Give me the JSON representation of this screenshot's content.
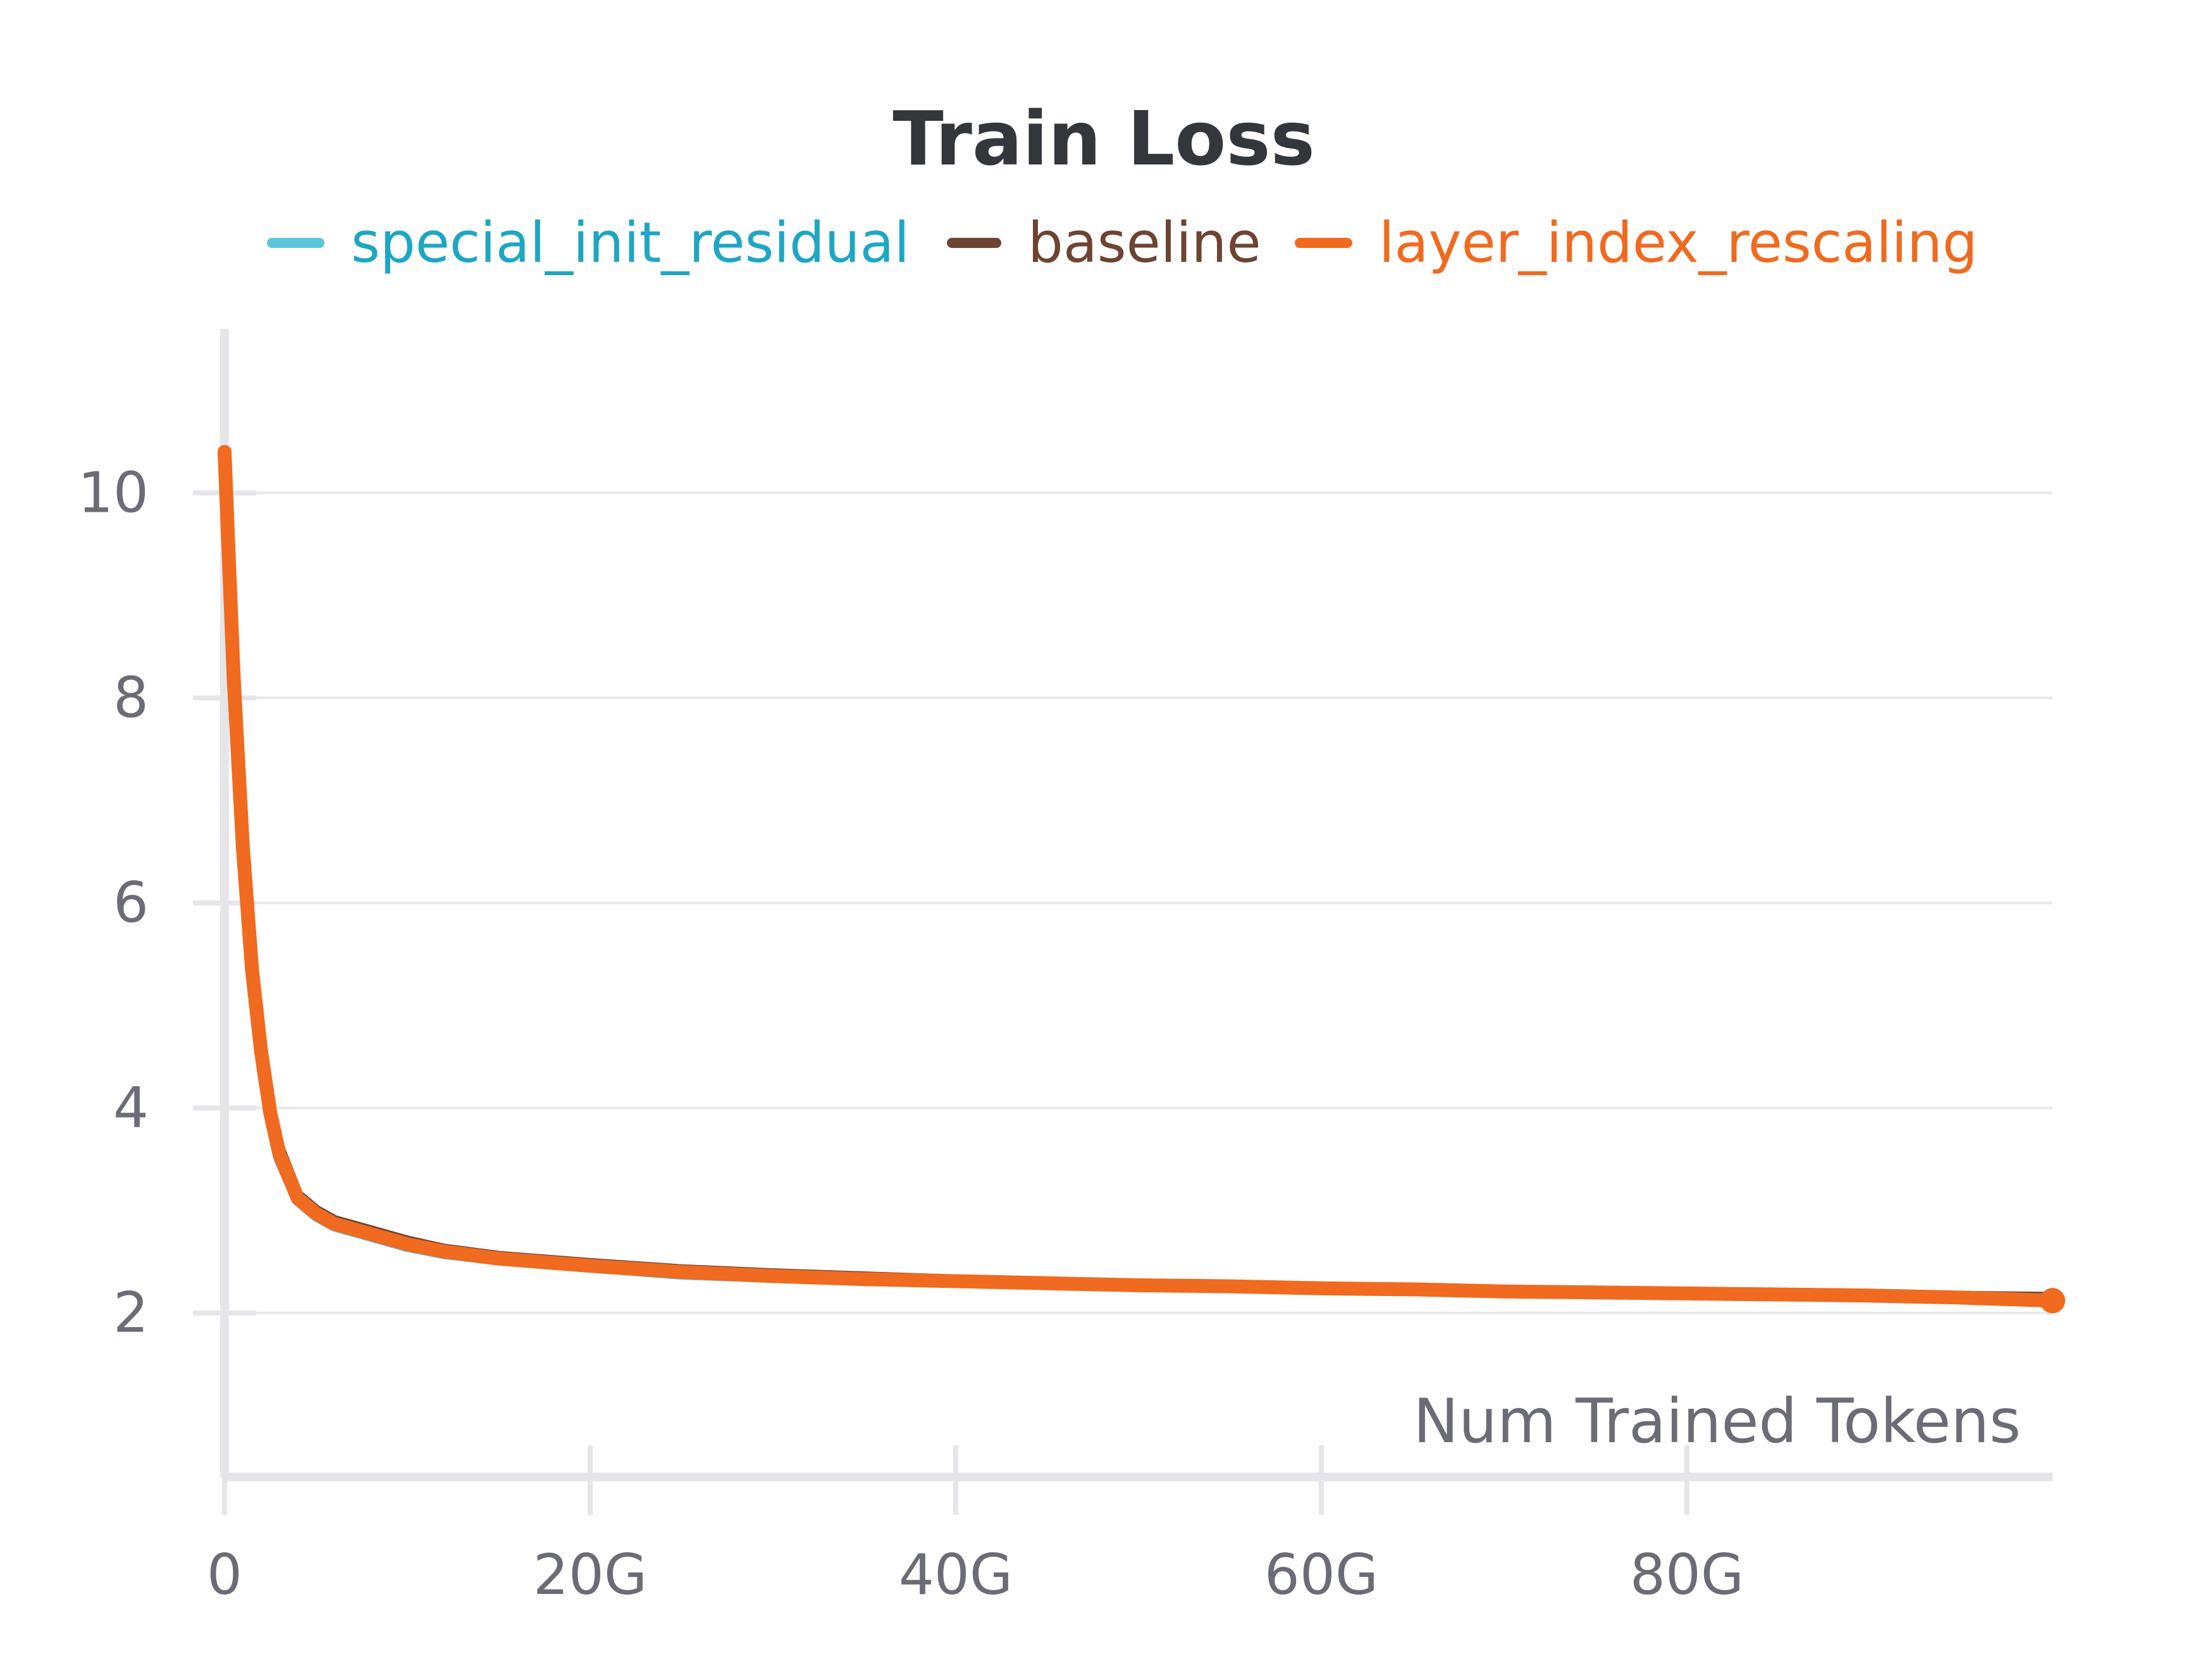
{
  "chart_data": {
    "type": "line",
    "title": "Train Loss",
    "xlabel": "Num Trained Tokens",
    "ylabel": "",
    "xlim": [
      0,
      100000000000
    ],
    "ylim": [
      0.4,
      11.6
    ],
    "x_ticks": [
      {
        "value": 0,
        "label": "0"
      },
      {
        "value": 20000000000,
        "label": "20G"
      },
      {
        "value": 40000000000,
        "label": "40G"
      },
      {
        "value": 60000000000,
        "label": "60G"
      },
      {
        "value": 80000000000,
        "label": "80G"
      }
    ],
    "y_ticks": [
      {
        "value": 2,
        "label": "2"
      },
      {
        "value": 4,
        "label": "4"
      },
      {
        "value": 6,
        "label": "6"
      },
      {
        "value": 8,
        "label": "8"
      },
      {
        "value": 10,
        "label": "10"
      }
    ],
    "grid": "horizontal",
    "legend_position": "top-center",
    "x": [
      0,
      500000000,
      1000000000,
      1500000000,
      2000000000,
      2500000000,
      3000000000,
      4000000000,
      5000000000,
      6000000000,
      8000000000,
      10000000000,
      12000000000,
      15000000000,
      20000000000,
      25000000000,
      30000000000,
      35000000000,
      40000000000,
      45000000000,
      50000000000,
      55000000000,
      60000000000,
      65000000000,
      70000000000,
      75000000000,
      80000000000,
      85000000000,
      90000000000,
      95000000000,
      100000000000
    ],
    "series": [
      {
        "name": "special_init_residual",
        "color": "#5bc5db",
        "values": [
          10.4,
          8.2,
          6.5,
          5.3,
          4.5,
          3.9,
          3.5,
          3.1,
          2.95,
          2.85,
          2.75,
          2.65,
          2.58,
          2.52,
          2.45,
          2.38,
          2.35,
          2.32,
          2.3,
          2.28,
          2.26,
          2.25,
          2.23,
          2.22,
          2.2,
          2.19,
          2.18,
          2.17,
          2.16,
          2.15,
          2.13
        ]
      },
      {
        "name": "baseline",
        "color": "#6e4331",
        "values": [
          10.4,
          8.3,
          6.6,
          5.4,
          4.6,
          4.0,
          3.6,
          3.15,
          3.0,
          2.9,
          2.8,
          2.7,
          2.62,
          2.55,
          2.48,
          2.42,
          2.38,
          2.35,
          2.32,
          2.3,
          2.28,
          2.27,
          2.25,
          2.24,
          2.22,
          2.21,
          2.2,
          2.19,
          2.18,
          2.16,
          2.15
        ]
      },
      {
        "name": "layer_index_rescaling",
        "color": "#f06a1f",
        "values": [
          10.4,
          8.2,
          6.55,
          5.35,
          4.55,
          3.95,
          3.55,
          3.12,
          2.97,
          2.87,
          2.77,
          2.67,
          2.6,
          2.53,
          2.46,
          2.4,
          2.36,
          2.33,
          2.31,
          2.29,
          2.27,
          2.26,
          2.24,
          2.23,
          2.21,
          2.2,
          2.19,
          2.18,
          2.17,
          2.15,
          2.12
        ]
      }
    ]
  }
}
